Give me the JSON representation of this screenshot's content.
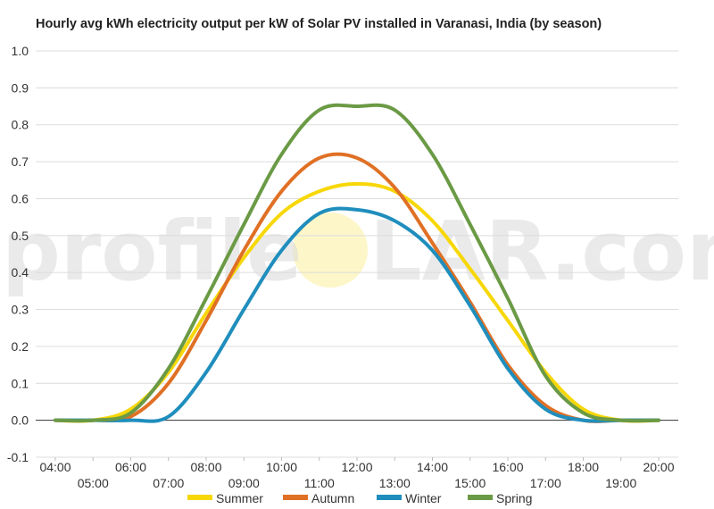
{
  "title": "Hourly avg kWh electricity output per kW of Solar PV installed in Varanasi, India (by season)",
  "watermark": {
    "left": "profile",
    "right": "LAR.com"
  },
  "chart_data": {
    "type": "line",
    "title": "Hourly avg kWh electricity output per kW of Solar PV installed in Varanasi, India (by season)",
    "xlabel": "",
    "ylabel": "",
    "ylim": [
      -0.1,
      1.0
    ],
    "yticks": [
      "1.0",
      "0.9",
      "0.8",
      "0.7",
      "0.6",
      "0.5",
      "0.4",
      "0.3",
      "0.2",
      "0.1",
      "0.0",
      "-0.1"
    ],
    "grid": true,
    "legend": "bottom",
    "x": [
      "04:00",
      "05:00",
      "06:00",
      "07:00",
      "08:00",
      "09:00",
      "10:00",
      "11:00",
      "12:00",
      "13:00",
      "14:00",
      "15:00",
      "16:00",
      "17:00",
      "18:00",
      "19:00",
      "20:00"
    ],
    "series": [
      {
        "name": "Summer",
        "color": "#f7d708",
        "values": [
          0.0,
          0.0,
          0.03,
          0.13,
          0.29,
          0.44,
          0.56,
          0.62,
          0.64,
          0.62,
          0.54,
          0.41,
          0.27,
          0.13,
          0.03,
          0.0,
          0.0
        ]
      },
      {
        "name": "Autumn",
        "color": "#e07025",
        "values": [
          0.0,
          0.0,
          0.01,
          0.1,
          0.27,
          0.46,
          0.62,
          0.71,
          0.71,
          0.63,
          0.48,
          0.32,
          0.15,
          0.04,
          0.0,
          0.0,
          0.0
        ]
      },
      {
        "name": "Winter",
        "color": "#1f8ebd",
        "values": [
          0.0,
          0.0,
          0.0,
          0.01,
          0.13,
          0.3,
          0.46,
          0.56,
          0.57,
          0.54,
          0.46,
          0.31,
          0.14,
          0.03,
          0.0,
          0.0,
          0.0
        ]
      },
      {
        "name": "Spring",
        "color": "#6b9a45",
        "values": [
          0.0,
          0.0,
          0.02,
          0.14,
          0.33,
          0.53,
          0.72,
          0.84,
          0.85,
          0.84,
          0.72,
          0.53,
          0.33,
          0.12,
          0.02,
          0.0,
          0.0
        ]
      }
    ]
  }
}
